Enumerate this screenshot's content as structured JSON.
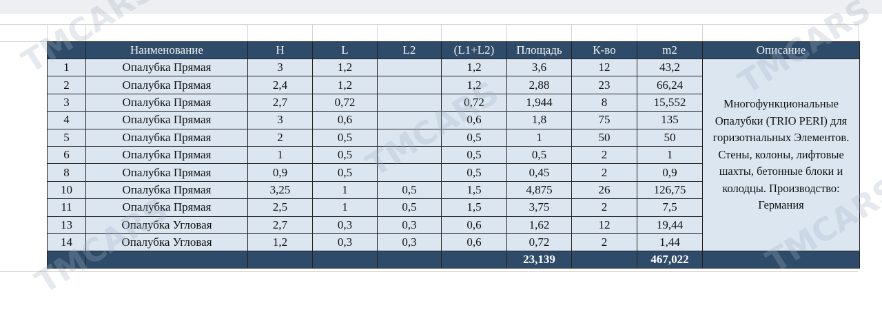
{
  "table": {
    "headers": [
      "",
      "Наименование",
      "H",
      "L",
      "L2",
      "(L1+L2)",
      "Площадь",
      "К-во",
      "m2",
      "Описание"
    ],
    "rows": [
      [
        "1",
        "Опалубка Прямая",
        "3",
        "1,2",
        "",
        "1,2",
        "3,6",
        "12",
        "43,2"
      ],
      [
        "2",
        "Опалубка Прямая",
        "2,4",
        "1,2",
        "",
        "1,2",
        "2,88",
        "23",
        "66,24"
      ],
      [
        "3",
        "Опалубка Прямая",
        "2,7",
        "0,72",
        "",
        "0,72",
        "1,944",
        "8",
        "15,552"
      ],
      [
        "4",
        "Опалубка Прямая",
        "3",
        "0,6",
        "",
        "0,6",
        "1,8",
        "75",
        "135"
      ],
      [
        "5",
        "Опалубка Прямая",
        "2",
        "0,5",
        "",
        "0,5",
        "1",
        "50",
        "50"
      ],
      [
        "6",
        "Опалубка Прямая",
        "1",
        "0,5",
        "",
        "0,5",
        "0,5",
        "2",
        "1"
      ],
      [
        "8",
        "Опалубка Прямая",
        "0,9",
        "0,5",
        "",
        "0,5",
        "0,45",
        "2",
        "0,9"
      ],
      [
        "10",
        "Опалубка Прямая",
        "3,25",
        "1",
        "0,5",
        "1,5",
        "4,875",
        "26",
        "126,75"
      ],
      [
        "11",
        "Опалубка Прямая",
        "2,5",
        "1",
        "0,5",
        "1,5",
        "3,75",
        "2",
        "7,5"
      ],
      [
        "13",
        "Опалубка Угловая",
        "2,7",
        "0,3",
        "0,3",
        "0,6",
        "1,62",
        "12",
        "19,44"
      ],
      [
        "14",
        "Опалубка Угловая",
        "1,2",
        "0,3",
        "0,3",
        "0,6",
        "0,72",
        "2",
        "1,44"
      ]
    ],
    "description": "Многофункциональные Опалубки (TRIO PERI) для горизотнальных Элементов. Стены, колоны, лифтовые шахты, бетонные блоки и колодцы. Производство: Германия",
    "totals": {
      "area": "23,139",
      "m2": "467,022"
    }
  },
  "watermarks": [
    "TMCARS",
    "TMCARS",
    "TMCARS",
    "TMCARS",
    "TMCARS"
  ],
  "colors": {
    "header_bg": "#2f4b6a",
    "row_bg": "#dce6f1"
  }
}
